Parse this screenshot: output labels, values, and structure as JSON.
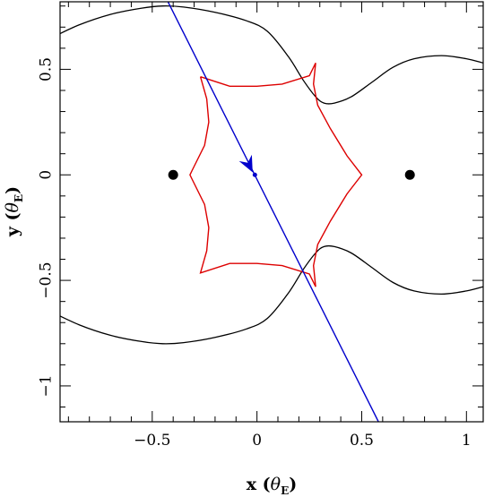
{
  "chart_data": {
    "type": "line",
    "title": "",
    "xlabel": {
      "main": "x (",
      "symbol": "θ",
      "sub": "E",
      "close": ")"
    },
    "ylabel": {
      "main": "y (",
      "symbol": "θ",
      "sub": "E",
      "close": ")"
    },
    "xlim": [
      -0.94,
      1.08
    ],
    "ylim": [
      -1.17,
      0.82
    ],
    "x_ticks": [
      -0.5,
      0,
      0.5,
      1
    ],
    "x_tick_labels": [
      "−0.5",
      "0",
      "0.5",
      "1"
    ],
    "y_ticks": [
      -1,
      -0.5,
      0,
      0.5
    ],
    "y_tick_labels": [
      "−1",
      "−0.5",
      "0",
      "0.5"
    ],
    "grid": false,
    "legend": "none",
    "colors": {
      "critical_curve": "#000000",
      "caustic": "#dd0000",
      "trajectory": "#0000cc"
    },
    "lenses": [
      {
        "x": -0.4,
        "y": 0.0
      },
      {
        "x": 0.73,
        "y": 0.0
      }
    ],
    "critical_curve": [
      [
        -1.0,
        0.64
      ],
      [
        -0.85,
        0.71
      ],
      [
        -0.7,
        0.76
      ],
      [
        -0.55,
        0.79
      ],
      [
        -0.45,
        0.8
      ],
      [
        -0.35,
        0.795
      ],
      [
        -0.2,
        0.77
      ],
      [
        -0.05,
        0.73
      ],
      [
        0.05,
        0.68
      ],
      [
        0.15,
        0.56
      ],
      [
        0.22,
        0.45
      ],
      [
        0.28,
        0.37
      ],
      [
        0.32,
        0.34
      ],
      [
        0.37,
        0.34
      ],
      [
        0.45,
        0.37
      ],
      [
        0.55,
        0.44
      ],
      [
        0.65,
        0.51
      ],
      [
        0.75,
        0.55
      ],
      [
        0.88,
        0.565
      ],
      [
        1.0,
        0.55
      ],
      [
        1.08,
        0.53
      ]
    ],
    "caustic": [
      [
        -0.27,
        0.465
      ],
      [
        -0.24,
        0.36
      ],
      [
        -0.23,
        0.25
      ],
      [
        -0.25,
        0.14
      ],
      [
        -0.31,
        0.02
      ],
      [
        -0.32,
        0.0
      ],
      [
        -0.31,
        -0.02
      ],
      [
        -0.25,
        -0.14
      ],
      [
        -0.23,
        -0.25
      ],
      [
        -0.24,
        -0.36
      ],
      [
        -0.27,
        -0.465
      ],
      [
        -0.13,
        -0.42
      ],
      [
        0.0,
        -0.42
      ],
      [
        0.12,
        -0.43
      ],
      [
        0.25,
        -0.47
      ],
      [
        0.28,
        -0.53
      ],
      [
        0.27,
        -0.43
      ],
      [
        0.29,
        -0.33
      ],
      [
        0.35,
        -0.22
      ],
      [
        0.43,
        -0.09
      ],
      [
        0.5,
        0.0
      ],
      [
        0.43,
        0.09
      ],
      [
        0.35,
        0.22
      ],
      [
        0.29,
        0.33
      ],
      [
        0.27,
        0.43
      ],
      [
        0.28,
        0.53
      ],
      [
        0.25,
        0.47
      ],
      [
        0.12,
        0.43
      ],
      [
        0.0,
        0.42
      ],
      [
        -0.13,
        0.42
      ],
      [
        -0.27,
        0.465
      ]
    ],
    "trajectory": {
      "start": [
        -0.44,
        0.85
      ],
      "end": [
        0.58,
        -1.17
      ],
      "marker": [
        -0.01,
        0.0
      ],
      "arrow_at": [
        -0.04,
        0.05
      ]
    }
  }
}
